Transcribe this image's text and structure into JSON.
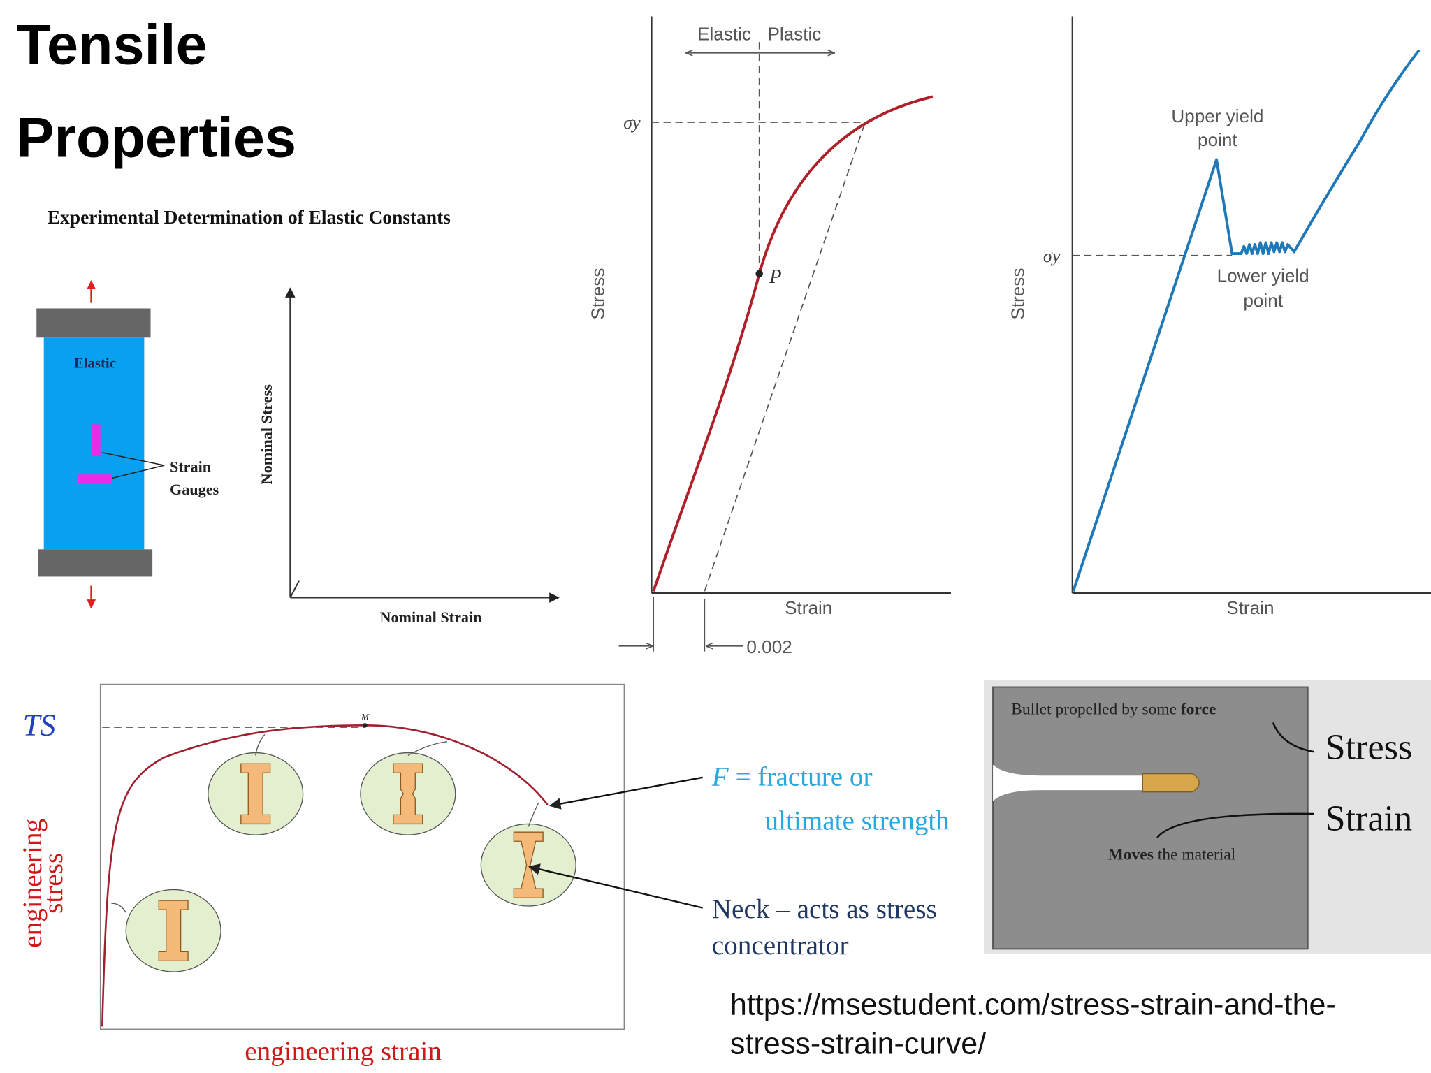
{
  "header": {
    "title_lines": [
      "Tensile",
      "Properties"
    ]
  },
  "elastic_constants": {
    "heading": "Experimental Determination of Elastic Constants",
    "specimen_label": "Elastic",
    "gauges_label": [
      "Strain",
      "Gauges"
    ],
    "y_axis_label": "Nominal Stress",
    "x_axis_label": "Nominal Strain"
  },
  "offset_yield": {
    "elastic_label": "Elastic",
    "plastic_label": "Plastic",
    "yield_symbol": "σy",
    "point_label": "P",
    "y_axis_label": "Stress",
    "x_axis_label": "Strain",
    "offset_label": "0.002"
  },
  "yield_point": {
    "upper_label": [
      "Upper yield",
      "point"
    ],
    "lower_label": [
      "Lower yield",
      "point"
    ],
    "yield_symbol": "σy",
    "y_axis_label": "Stress",
    "x_axis_label": "Strain"
  },
  "engineering_curve": {
    "ts_label": "TS",
    "max_label": "M",
    "y_axis_label": [
      "engineering",
      "stress"
    ],
    "x_axis_label": "engineering strain",
    "fracture_label": {
      "symbol": "F",
      "text": " = fracture or",
      "line2": "ultimate strength"
    },
    "neck_label": [
      "Neck – acts as stress",
      "concentrator"
    ]
  },
  "bullet": {
    "caption": {
      "text": "Bullet propelled by some ",
      "bold": "force"
    },
    "moves": {
      "bold": "Moves",
      "text": " the material"
    },
    "stress_label": "Stress",
    "strain_label": "Strain"
  },
  "footer": {
    "url_lines": [
      "https://msestudent.com/stress-strain-and-the-",
      "stress-strain-curve/"
    ]
  }
}
